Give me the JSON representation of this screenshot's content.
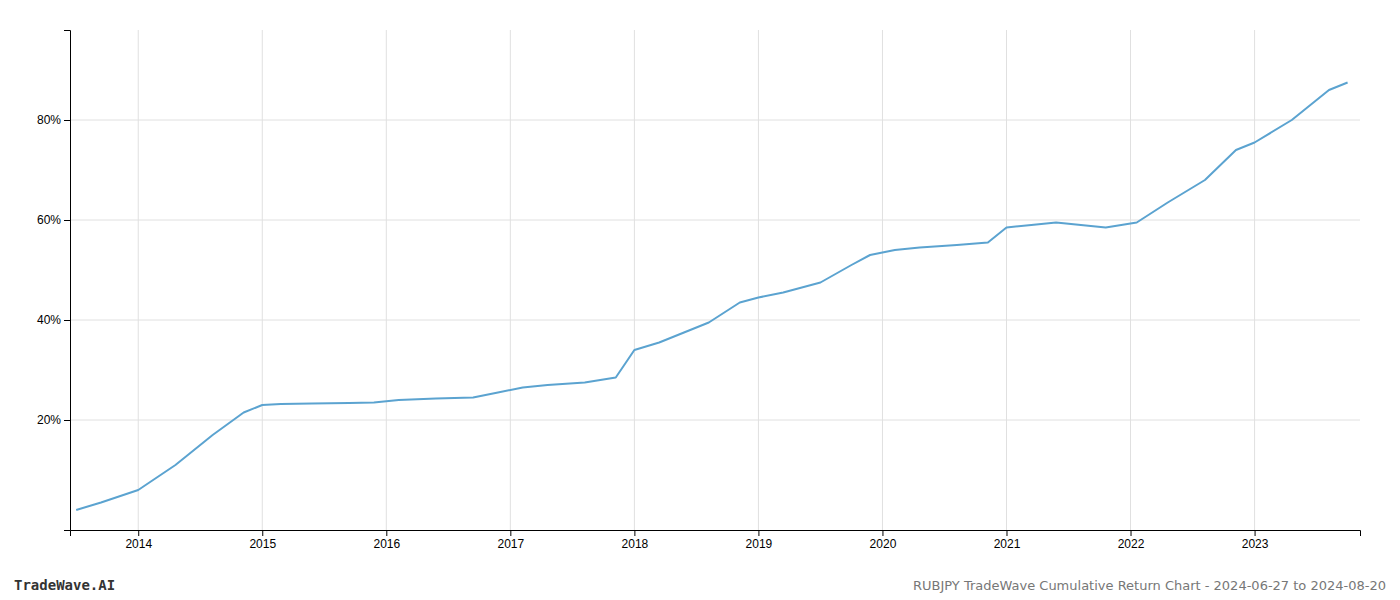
{
  "chart_data": {
    "type": "line",
    "title": "RUBJPY TradeWave Cumulative Return Chart - 2024-06-27 to 2024-08-20",
    "annotations": [
      "TradeWave.AI"
    ],
    "x": [
      2013.5,
      2013.7,
      2014.0,
      2014.3,
      2014.6,
      2014.85,
      2015.0,
      2015.15,
      2015.4,
      2015.7,
      2015.9,
      2016.1,
      2016.4,
      2016.7,
      2016.9,
      2017.1,
      2017.3,
      2017.6,
      2017.85,
      2018.0,
      2018.2,
      2018.4,
      2018.6,
      2018.85,
      2019.0,
      2019.2,
      2019.5,
      2019.75,
      2019.9,
      2020.1,
      2020.3,
      2020.6,
      2020.85,
      2021.0,
      2021.2,
      2021.4,
      2021.6,
      2021.8,
      2022.05,
      2022.3,
      2022.6,
      2022.85,
      2023.0,
      2023.3,
      2023.6,
      2023.75
    ],
    "values": [
      2.0,
      3.5,
      6.0,
      11.0,
      17.0,
      21.5,
      23.0,
      23.2,
      23.3,
      23.4,
      23.5,
      24.0,
      24.3,
      24.5,
      25.5,
      26.5,
      27.0,
      27.5,
      28.5,
      34.0,
      35.5,
      37.5,
      39.5,
      43.5,
      44.5,
      45.5,
      47.5,
      51.0,
      53.0,
      54.0,
      54.5,
      55.0,
      55.5,
      58.5,
      59.0,
      59.5,
      59.0,
      58.5,
      59.5,
      63.5,
      68.0,
      74.0,
      75.5,
      80.0,
      86.0,
      87.5
    ],
    "color": "#5ba3d0",
    "xlim": [
      2013.45,
      2023.85
    ],
    "ylim": [
      -2,
      98
    ],
    "xticks": [
      2014,
      2015,
      2016,
      2017,
      2018,
      2019,
      2020,
      2021,
      2022,
      2023
    ],
    "yticks": [
      {
        "value": 20,
        "label": "20%"
      },
      {
        "value": 40,
        "label": "40%"
      },
      {
        "value": 60,
        "label": "60%"
      },
      {
        "value": 80,
        "label": "80%"
      }
    ],
    "grid": true
  }
}
